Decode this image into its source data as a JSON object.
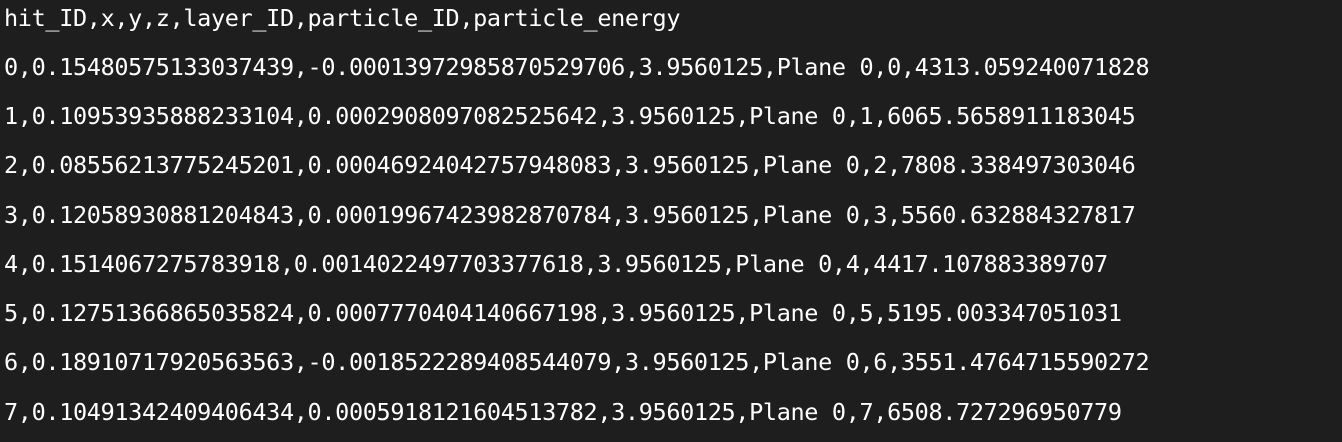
{
  "editor": {
    "lines": [
      "hit_ID,x,y,z,layer_ID,particle_ID,particle_energy",
      "0,0.15480575133037439,-0.00013972985870529706,3.9560125,Plane 0,0,4313.059240071828",
      "1,0.10953935888233104,0.0002908097082525642,3.9560125,Plane 0,1,6065.5658911183045",
      "2,0.0855621377524520l,0.00046924042757948083,3.9560125,Plane 0,2,7808.338497303046",
      "3,0.12058930881204843,0.00019967423982870784,3.9560125,Plane 0,3,5560.632884327817",
      "4,0.1514067275783918,0.001402249770337761​8,3.9560125,Plane 0,4,4417.107883389707",
      "5,0.12751366865035824,0.0007770404140667198,3.9560125,Plane 0,5,5195.003347051031",
      "6,0.18910717920563563,-0.001852228940854407 9,3.9560125,Plane 0,6,3551.4764715590272",
      "7,0.10491342409406434,0.0005918121604513782,3.9560125,Plane 0,7,6508.727296950779"
    ],
    "colors": {
      "background": "#1e1e1e",
      "text": "#ffffff"
    }
  }
}
